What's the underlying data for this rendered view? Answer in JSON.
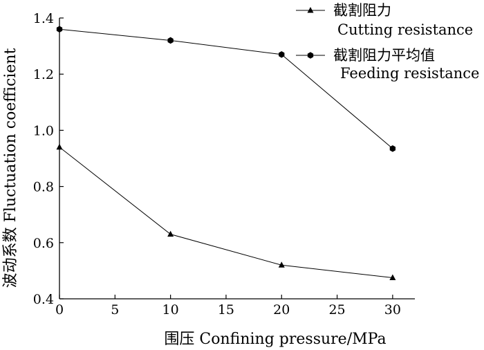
{
  "chart_data": {
    "type": "line",
    "xlabel": "围压 Confining pressure/MPa",
    "ylabel": "波动系数 Fluctuation coefficient",
    "xlim": [
      0,
      32
    ],
    "ylim": [
      0.4,
      1.4
    ],
    "xticks": [
      0,
      5,
      10,
      15,
      20,
      25,
      30
    ],
    "yticks": [
      0.4,
      0.6,
      0.8,
      1.0,
      1.2,
      1.4
    ],
    "xtick_labels": [
      "0",
      "5",
      "10",
      "15",
      "20",
      "25",
      "30"
    ],
    "ytick_labels": [
      "0.4",
      "0.6",
      "0.8",
      "1.0",
      "1.2",
      "1.4"
    ],
    "grid": false,
    "legend_position": "top-right, outside plot",
    "series": [
      {
        "name_cn": "截割阻力",
        "name_en": "Cutting resistance",
        "marker": "triangle",
        "color": "#000000",
        "x": [
          0,
          10,
          20,
          30
        ],
        "y": [
          0.94,
          0.63,
          0.52,
          0.475
        ]
      },
      {
        "name_cn": "截割阻力平均值",
        "name_en": "Feeding resistance",
        "marker": "hexagon",
        "color": "#000000",
        "x": [
          0,
          10,
          20,
          30
        ],
        "y": [
          1.36,
          1.32,
          1.27,
          0.935
        ]
      }
    ]
  }
}
